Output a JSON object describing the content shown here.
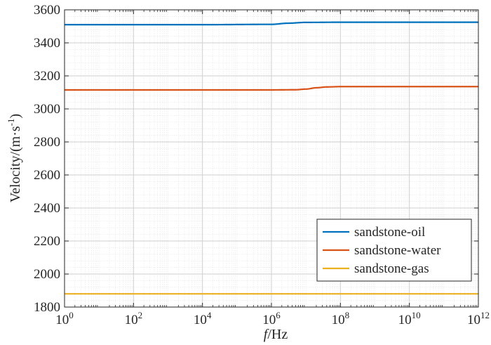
{
  "chart_data": {
    "type": "line",
    "xscale": "log",
    "xlim": [
      1,
      1000000000000
    ],
    "ylim": [
      1800,
      3600
    ],
    "xlabel_italic": "f",
    "xlabel_rest": "/Hz",
    "ylabel_main": "Velocity/(m·s",
    "ylabel_sup": "-1",
    "ylabel_close": ")",
    "grid": true,
    "minor_grid": true,
    "legend_position": "lower-right",
    "x_ticks": [
      {
        "base": "10",
        "exp": "0",
        "value": 1
      },
      {
        "base": "10",
        "exp": "2",
        "value": 100
      },
      {
        "base": "10",
        "exp": "4",
        "value": 10000
      },
      {
        "base": "10",
        "exp": "6",
        "value": 1000000
      },
      {
        "base": "10",
        "exp": "8",
        "value": 100000000
      },
      {
        "base": "10",
        "exp": "10",
        "value": 10000000000
      },
      {
        "base": "10",
        "exp": "12",
        "value": 1000000000000
      }
    ],
    "y_ticks": [
      "1800",
      "2000",
      "2200",
      "2400",
      "2600",
      "2800",
      "3000",
      "3200",
      "3400",
      "3600"
    ],
    "series": [
      {
        "name": "sandstone-oil",
        "color": "#0072BD",
        "x": [
          1,
          100,
          10000,
          1000000,
          3000000,
          10000000,
          100000000,
          10000000000,
          1000000000000
        ],
        "y": [
          3510,
          3510,
          3510,
          3512,
          3519,
          3524,
          3525,
          3525,
          3525
        ]
      },
      {
        "name": "sandstone-water",
        "color": "#D95319",
        "x": [
          1,
          100,
          10000,
          1000000,
          5000000,
          10000000,
          20000000,
          40000000,
          100000000,
          10000000000,
          1000000000000
        ],
        "y": [
          3115,
          3115,
          3115,
          3115,
          3116,
          3120,
          3128,
          3133,
          3135,
          3135,
          3135
        ]
      },
      {
        "name": "sandstone-gas",
        "color": "#EDB120",
        "x": [
          1,
          1000000000000
        ],
        "y": [
          1880,
          1880
        ]
      }
    ]
  }
}
